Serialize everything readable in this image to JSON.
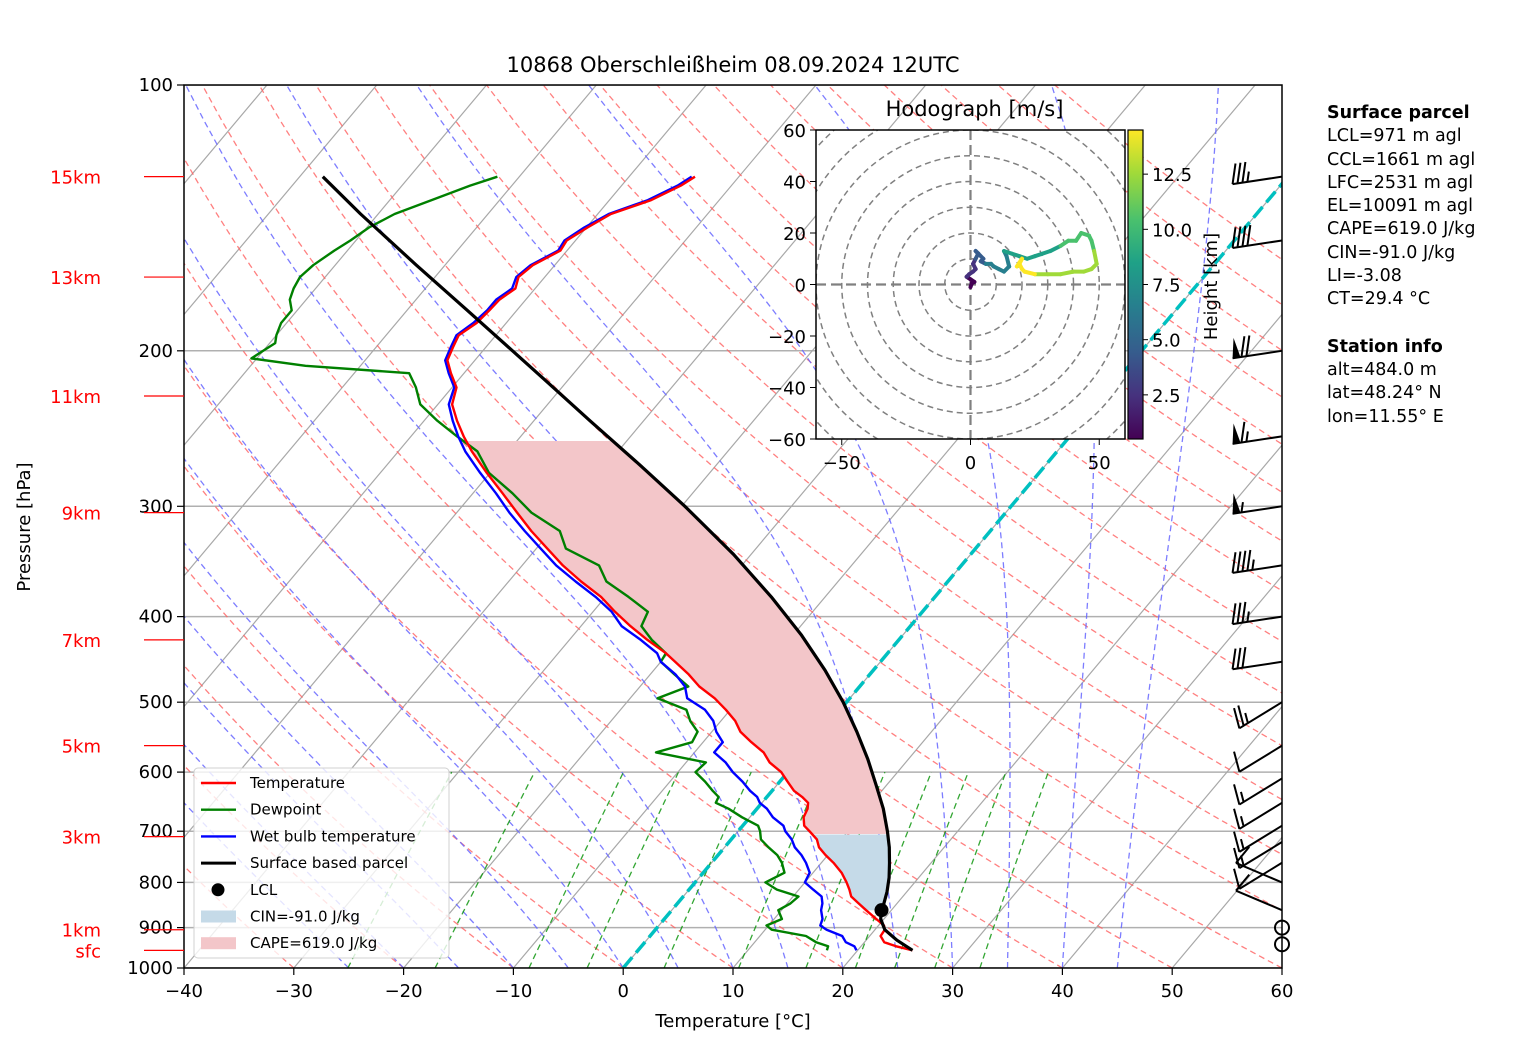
{
  "chart_data": {
    "type": "skew-t",
    "title": "10868 Oberschleißheim 08.09.2024 12UTC",
    "xlabel": "Temperature [°C]",
    "ylabel": "Pressure [hPa]",
    "xlim": [
      -40,
      60
    ],
    "ylim": [
      1000,
      100
    ],
    "x_ticks": [
      "−40",
      "−30",
      "−20",
      "−10",
      "0",
      "10",
      "20",
      "30",
      "40",
      "50",
      "60"
    ],
    "x_tick_values": [
      -40,
      -30,
      -20,
      -10,
      0,
      10,
      20,
      30,
      40,
      50,
      60
    ],
    "y_ticks": [
      "100",
      "200",
      "300",
      "400",
      "500",
      "600",
      "700",
      "800",
      "900",
      "1000"
    ],
    "y_tick_values": [
      100,
      200,
      300,
      400,
      500,
      600,
      700,
      800,
      900,
      1000
    ],
    "height_labels": [
      {
        "label": "15km",
        "p": 127
      },
      {
        "label": "13km",
        "p": 165
      },
      {
        "label": "11km",
        "p": 225
      },
      {
        "label": "9km",
        "p": 305
      },
      {
        "label": "7km",
        "p": 425
      },
      {
        "label": "5km",
        "p": 560
      },
      {
        "label": "3km",
        "p": 710
      },
      {
        "label": "1km",
        "p": 905
      },
      {
        "label": "sfc",
        "p": 955
      }
    ],
    "series": [
      {
        "name": "Temperature",
        "color": "#ff0000",
        "p": [
          955,
          945,
          935,
          920,
          905,
          895,
          880,
          860,
          845,
          830,
          815,
          800,
          780,
          760,
          745,
          730,
          715,
          700,
          690,
          675,
          660,
          650,
          640,
          630,
          615,
          600,
          585,
          570,
          555,
          540,
          525,
          510,
          495,
          480,
          465,
          450,
          440,
          425,
          410,
          395,
          380,
          365,
          350,
          335,
          320,
          305,
          290,
          275,
          260,
          250,
          240,
          230,
          220,
          212,
          205,
          198,
          192,
          186,
          180,
          175,
          170,
          165,
          160,
          154,
          150,
          145,
          140,
          135,
          130,
          127
        ],
        "T": [
          25.0,
          23.2,
          21.8,
          21.0,
          20.9,
          20.5,
          19.3,
          17.7,
          16.5,
          15.3,
          14.6,
          13.8,
          12.6,
          11.1,
          9.8,
          8.6,
          7.8,
          6.5,
          5.6,
          4.9,
          4.6,
          4.2,
          3.2,
          2.0,
          0.7,
          -0.6,
          -2.4,
          -3.7,
          -5.6,
          -7.4,
          -8.7,
          -10.4,
          -12.3,
          -14.6,
          -16.5,
          -18.7,
          -20.2,
          -22.9,
          -25.5,
          -28.0,
          -30.4,
          -33.4,
          -36.3,
          -39.0,
          -41.8,
          -44.5,
          -47.3,
          -50.3,
          -53.3,
          -55.2,
          -57.0,
          -58.7,
          -59.6,
          -61.2,
          -62.5,
          -63.0,
          -63.4,
          -62.7,
          -62.5,
          -62.4,
          -61.8,
          -62.4,
          -62.0,
          -60.6,
          -60.8,
          -59.9,
          -58.8,
          -56.2,
          -54.6,
          -54.0
        ]
      },
      {
        "name": "Dewpoint",
        "color": "#008000",
        "p": [
          955,
          945,
          935,
          920,
          905,
          895,
          880,
          860,
          845,
          830,
          815,
          800,
          780,
          760,
          745,
          730,
          715,
          700,
          690,
          675,
          660,
          650,
          640,
          630,
          615,
          600,
          585,
          570,
          555,
          540,
          525,
          510,
          495,
          480,
          465,
          450,
          440,
          425,
          410,
          395,
          380,
          365,
          350,
          335,
          320,
          305,
          290,
          275,
          260,
          250,
          240,
          230,
          220,
          212,
          208,
          204,
          200,
          196,
          192,
          186,
          180,
          175,
          170,
          165,
          160,
          154,
          150,
          145,
          140,
          135,
          130,
          127
        ],
        "T": [
          17.2,
          17.0,
          15.6,
          14.2,
          10.6,
          9.8,
          10.7,
          9.7,
          10.3,
          10.5,
          8.0,
          6.4,
          7.4,
          6.4,
          5.4,
          4.0,
          2.7,
          2.0,
          1.4,
          -0.7,
          -2.6,
          -4.2,
          -4.4,
          -5.4,
          -6.8,
          -8.4,
          -8.2,
          -13.5,
          -11.0,
          -11.3,
          -12.8,
          -14.0,
          -17.5,
          -15.6,
          -17.8,
          -20.0,
          -20.2,
          -22.5,
          -24.5,
          -25.0,
          -27.9,
          -31.1,
          -33.0,
          -37.3,
          -39.2,
          -43.2,
          -46.4,
          -50.1,
          -52.8,
          -55.8,
          -58.8,
          -61.6,
          -63.3,
          -65.0,
          -75.0,
          -80.5,
          -80.0,
          -79.5,
          -80.0,
          -80.5,
          -80.5,
          -81.5,
          -82.0,
          -82.3,
          -82.0,
          -81.2,
          -80.5,
          -79.8,
          -78.5,
          -76.2,
          -73.8,
          -72.0
        ]
      },
      {
        "name": "Wet bulb temperature",
        "color": "#0000ff",
        "p": [
          955,
          945,
          935,
          920,
          905,
          895,
          880,
          860,
          845,
          830,
          815,
          800,
          780,
          760,
          745,
          730,
          715,
          700,
          690,
          675,
          660,
          650,
          640,
          630,
          615,
          600,
          585,
          570,
          555,
          540,
          525,
          510,
          495,
          480,
          465,
          450,
          440,
          425,
          410,
          395,
          380,
          365,
          350,
          335,
          320,
          305,
          290,
          275,
          260,
          250,
          240,
          230,
          220,
          212,
          205,
          198,
          192,
          186,
          180,
          175,
          170,
          165,
          160,
          154,
          150,
          145,
          140,
          135,
          130,
          127
        ],
        "T": [
          19.9,
          19.4,
          18.3,
          17.5,
          15.6,
          14.7,
          14.4,
          13.6,
          13.2,
          12.6,
          11.3,
          10.0,
          9.7,
          8.6,
          7.6,
          6.4,
          5.5,
          4.3,
          3.7,
          2.1,
          0.9,
          -0.2,
          -0.9,
          -2.0,
          -3.4,
          -5.0,
          -6.4,
          -8.2,
          -8.2,
          -9.6,
          -10.7,
          -12.3,
          -14.8,
          -15.9,
          -17.7,
          -20.0,
          -21.0,
          -23.5,
          -26.3,
          -28.3,
          -30.9,
          -33.9,
          -36.9,
          -39.6,
          -42.4,
          -45.2,
          -47.9,
          -50.9,
          -53.9,
          -55.7,
          -57.4,
          -59.0,
          -59.8,
          -61.4,
          -62.7,
          -63.2,
          -63.6,
          -63.0,
          -62.7,
          -62.7,
          -62.1,
          -62.6,
          -62.2,
          -60.8,
          -61.0,
          -60.2,
          -59.0,
          -56.5,
          -54.9,
          -54.3
        ]
      },
      {
        "name": "Surface based parcel",
        "color": "#000000",
        "p": [
          955,
          930,
          905,
          880,
          860,
          845,
          820,
          790,
          760,
          730,
          700,
          660,
          620,
          580,
          540,
          500,
          460,
          420,
          380,
          340,
          300,
          270,
          240,
          220,
          200,
          180,
          160,
          140,
          127
        ],
        "T": [
          25.0,
          22.8,
          20.9,
          19.7,
          19.1,
          18.8,
          18.2,
          17.3,
          16.2,
          15.0,
          13.6,
          11.5,
          9.0,
          6.3,
          3.2,
          -0.3,
          -4.4,
          -9.2,
          -14.9,
          -21.6,
          -29.7,
          -36.8,
          -44.9,
          -50.8,
          -57.3,
          -64.5,
          -72.6,
          -81.6,
          -87.9
        ]
      }
    ],
    "lcl": {
      "label": "LCL",
      "p": 860,
      "T": 19.1
    },
    "fills": [
      {
        "name": "CIN=-91.0 J/kg",
        "color": "#c5dae8"
      },
      {
        "name": "CAPE=619.0 J/kg",
        "color": "#f3c6c9"
      }
    ],
    "legend": {
      "placement": "lower-left",
      "items": [
        {
          "label": "Temperature",
          "kind": "line",
          "color": "#ff0000"
        },
        {
          "label": "Dewpoint",
          "kind": "line",
          "color": "#008000"
        },
        {
          "label": "Wet bulb temperature",
          "kind": "line",
          "color": "#0000ff"
        },
        {
          "label": "Surface based parcel",
          "kind": "line",
          "color": "#000000"
        },
        {
          "label": "LCL",
          "kind": "marker",
          "color": "#000000"
        },
        {
          "label": "CIN=-91.0 J/kg",
          "kind": "patch",
          "color": "#c5dae8"
        },
        {
          "label": "CAPE=619.0 J/kg",
          "kind": "patch",
          "color": "#f3c6c9"
        }
      ]
    },
    "zero_isotherm_color": "#00c0c0",
    "wind_barbs": [
      {
        "p": 127,
        "speed_kt": 35
      },
      {
        "p": 150,
        "speed_kt": 40
      },
      {
        "p": 200,
        "speed_kt": 70
      },
      {
        "p": 250,
        "speed_kt": 65
      },
      {
        "p": 300,
        "speed_kt": 55
      },
      {
        "p": 350,
        "speed_kt": 45
      },
      {
        "p": 400,
        "speed_kt": 35
      },
      {
        "p": 450,
        "speed_kt": 30
      },
      {
        "p": 500,
        "speed_kt": 25
      },
      {
        "p": 560,
        "speed_kt": 10
      },
      {
        "p": 610,
        "speed_kt": 15
      },
      {
        "p": 650,
        "speed_kt": 15
      },
      {
        "p": 690,
        "speed_kt": 15
      },
      {
        "p": 720,
        "speed_kt": 15
      },
      {
        "p": 760,
        "speed_kt": 10
      },
      {
        "p": 800,
        "speed_kt": 10
      },
      {
        "p": 860,
        "speed_kt": 10
      },
      {
        "p": 900,
        "speed_kt": 0
      },
      {
        "p": 940,
        "speed_kt": 0
      }
    ],
    "hodograph": {
      "title": "Hodograph [m/s]",
      "xlim": [
        -60,
        60
      ],
      "ylim": [
        -60,
        60
      ],
      "x_ticks": [
        "−50",
        "0",
        "50"
      ],
      "x_tick_values": [
        -50,
        0,
        50
      ],
      "y_ticks": [
        "60",
        "40",
        "20",
        "0",
        "−20",
        "−40",
        "−60"
      ],
      "y_tick_values": [
        60,
        40,
        20,
        0,
        -20,
        -40,
        -60
      ],
      "rings": [
        10,
        20,
        30,
        40,
        50,
        60,
        70,
        80
      ],
      "colorbar": {
        "label": "Height [km]",
        "ticks": [
          "2.5",
          "5.0",
          "7.5",
          "10.0",
          "12.5"
        ],
        "tick_values": [
          2.5,
          5.0,
          7.5,
          10.0,
          12.5
        ],
        "range": [
          0.5,
          14.5
        ]
      },
      "u": [
        0,
        0.5,
        1.5,
        0,
        -1.5,
        -0.5,
        1,
        2,
        1,
        2,
        3,
        2,
        3,
        5,
        4,
        6,
        8,
        9,
        11,
        13,
        15,
        14,
        13,
        16,
        19,
        22,
        25,
        28,
        31,
        35,
        38,
        41,
        43,
        46,
        47,
        48,
        49,
        47,
        44,
        40,
        35,
        30,
        25,
        21,
        20,
        19,
        20,
        18
      ],
      "v": [
        -1,
        0.5,
        1,
        2,
        3,
        4,
        5,
        6,
        8,
        10,
        12,
        13,
        12,
        10,
        9,
        8,
        8,
        7,
        6,
        5,
        7,
        11,
        13,
        12,
        11,
        10,
        11,
        12,
        13,
        15,
        17,
        17,
        20,
        19,
        17,
        13,
        8,
        6,
        5,
        5,
        4,
        4,
        4,
        5,
        6,
        8,
        10,
        7
      ],
      "z": [
        0.5,
        0.8,
        1.1,
        1.4,
        1.7,
        2.0,
        2.4,
        2.8,
        3.2,
        3.6,
        4.0,
        4.3,
        4.6,
        4.9,
        5.2,
        5.5,
        5.8,
        6.1,
        6.4,
        6.7,
        7.0,
        7.3,
        7.6,
        7.9,
        8.2,
        8.5,
        8.8,
        9.1,
        9.4,
        9.7,
        10.0,
        10.3,
        10.6,
        10.9,
        11.2,
        11.5,
        11.8,
        12.1,
        12.4,
        12.7,
        13.0,
        13.3,
        13.6,
        13.8,
        14.0,
        14.2,
        14.4,
        14.5
      ]
    }
  },
  "info": {
    "surface_parcel": {
      "header": "Surface parcel",
      "lines": [
        "LCL=971 m agl",
        "CCL=1661 m agl",
        "LFC=2531 m agl",
        "EL=10091 m agl",
        "CAPE=619.0 J/kg",
        "CIN=-91.0 J/kg",
        "LI=-3.08",
        "CT=29.4 °C"
      ]
    },
    "station_info": {
      "header": "Station info",
      "lines": [
        "alt=484.0 m",
        "lat=48.24° N",
        "lon=11.55° E"
      ]
    }
  }
}
